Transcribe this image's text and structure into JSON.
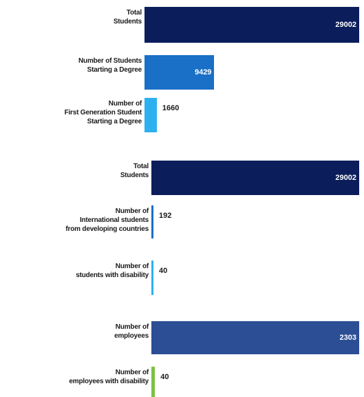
{
  "chart_data": [
    {
      "type": "hbar",
      "categories": [
        "Total\nStudents",
        "Number of Students\nStarting a Degree",
        "Number of\nFirst Generation Student\nStarting a Degree"
      ],
      "values": [
        29002,
        9429,
        1660
      ],
      "colors": [
        "#0b1d5a",
        "#1a6fc6",
        "#2cb0f0"
      ]
    },
    {
      "type": "hbar",
      "categories": [
        "Total\nStudents",
        "Number of\nInternational students\nfrom developing countries",
        "Number of\nstudents with disability"
      ],
      "values": [
        29002,
        192,
        40
      ],
      "colors": [
        "#0b1d5a",
        "#1a6fc6",
        "#2cb0f0"
      ]
    },
    {
      "type": "hbar",
      "categories": [
        "Number of\nemployees",
        "Number of\nemployees with disability"
      ],
      "values": [
        2303,
        40
      ],
      "colors": [
        "#2b4e95",
        "#7cc245"
      ]
    }
  ]
}
